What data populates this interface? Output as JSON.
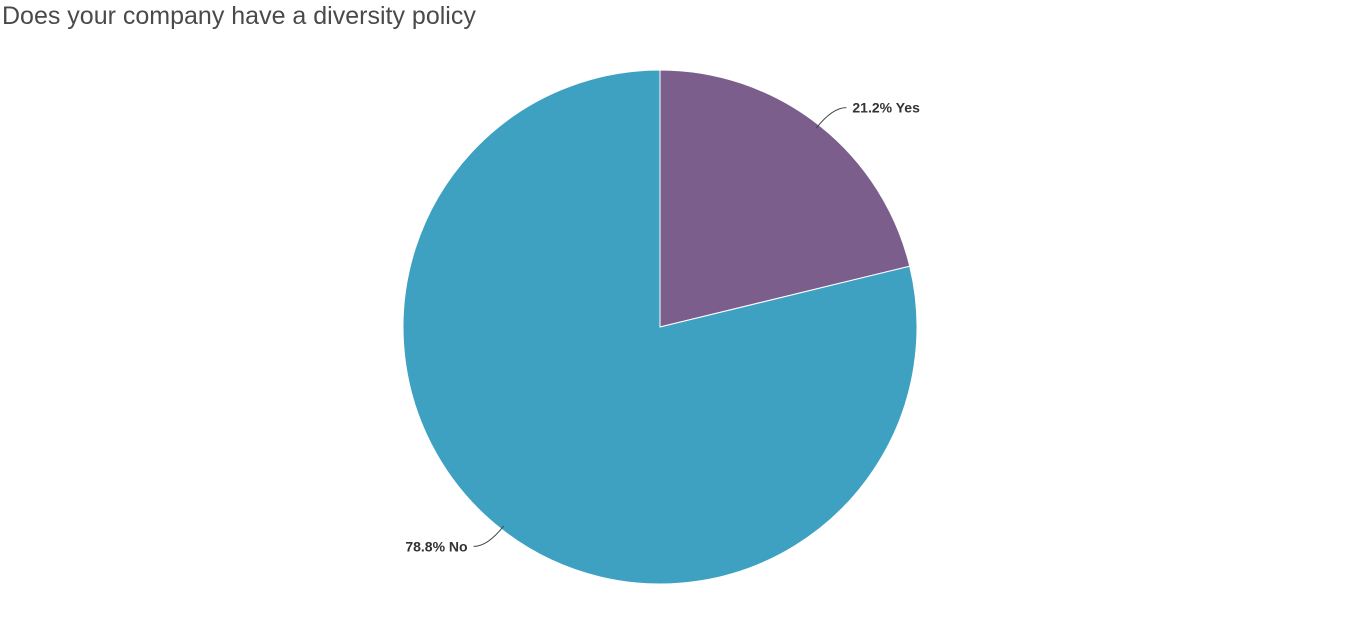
{
  "chart_data": {
    "type": "pie",
    "title": "Does your company have a diversity policy",
    "slices": [
      {
        "label": "Yes",
        "value": 21.2,
        "display": "21.2% Yes",
        "color": "#7b5e8c"
      },
      {
        "label": "No",
        "value": 78.8,
        "display": "78.8% No",
        "color": "#3fa1c1"
      }
    ],
    "start": "12 o'clock",
    "direction": "clockwise",
    "legend": "none"
  }
}
